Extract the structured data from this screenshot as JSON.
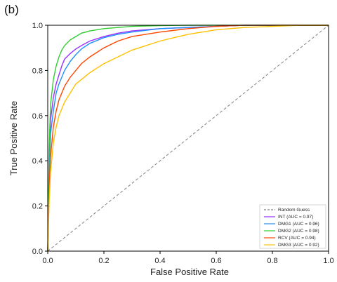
{
  "panel_label": "(b)",
  "chart_data": {
    "type": "line",
    "title": "",
    "xlabel": "False Positive Rate",
    "ylabel": "True Positive Rate",
    "xlim": [
      0.0,
      1.0
    ],
    "ylim": [
      0.0,
      1.0
    ],
    "xticks": [
      "0.0",
      "0.2",
      "0.4",
      "0.6",
      "0.8",
      "1.0"
    ],
    "yticks": [
      "0.0",
      "0.2",
      "0.4",
      "0.6",
      "0.8",
      "1.0"
    ],
    "grid": false,
    "legend_position": "lower-right",
    "series": [
      {
        "name": "Random Guess",
        "color": "#808080",
        "dashed": true,
        "x": [
          0,
          1
        ],
        "y": [
          0,
          1
        ]
      },
      {
        "name": "INT (AUC = 0.97)",
        "color": "#9b30ff",
        "x": [
          0,
          0.005,
          0.01,
          0.02,
          0.03,
          0.04,
          0.05,
          0.06,
          0.08,
          0.1,
          0.12,
          0.15,
          0.2,
          0.25,
          0.3,
          0.4,
          0.5,
          0.6,
          0.7,
          1.0
        ],
        "y": [
          0,
          0.4,
          0.58,
          0.68,
          0.74,
          0.78,
          0.82,
          0.85,
          0.875,
          0.895,
          0.91,
          0.93,
          0.95,
          0.965,
          0.975,
          0.985,
          0.99,
          0.995,
          1.0,
          1.0
        ]
      },
      {
        "name": "DMG1 (AUC = 0.96)",
        "color": "#1e90ff",
        "x": [
          0,
          0.005,
          0.01,
          0.02,
          0.03,
          0.04,
          0.05,
          0.06,
          0.08,
          0.1,
          0.12,
          0.15,
          0.2,
          0.25,
          0.3,
          0.4,
          0.5,
          0.6,
          0.7,
          1.0
        ],
        "y": [
          0,
          0.35,
          0.52,
          0.62,
          0.7,
          0.74,
          0.77,
          0.8,
          0.84,
          0.87,
          0.895,
          0.92,
          0.945,
          0.96,
          0.97,
          0.985,
          0.99,
          0.995,
          1.0,
          1.0
        ]
      },
      {
        "name": "DMG2 (AUC = 0.98)",
        "color": "#32cd32",
        "x": [
          0,
          0.005,
          0.01,
          0.02,
          0.03,
          0.04,
          0.05,
          0.06,
          0.08,
          0.1,
          0.12,
          0.15,
          0.2,
          0.25,
          0.3,
          0.4,
          0.5,
          0.6,
          1.0
        ],
        "y": [
          0,
          0.45,
          0.65,
          0.76,
          0.82,
          0.86,
          0.89,
          0.91,
          0.935,
          0.95,
          0.965,
          0.975,
          0.985,
          0.99,
          0.995,
          0.998,
          1.0,
          1.0,
          1.0
        ]
      },
      {
        "name": "RCV (AUC = 0.94)",
        "color": "#ff4500",
        "x": [
          0,
          0.005,
          0.01,
          0.02,
          0.03,
          0.04,
          0.05,
          0.06,
          0.08,
          0.1,
          0.12,
          0.15,
          0.2,
          0.25,
          0.3,
          0.4,
          0.5,
          0.6,
          0.7,
          1.0
        ],
        "y": [
          0,
          0.28,
          0.42,
          0.55,
          0.62,
          0.67,
          0.7,
          0.73,
          0.77,
          0.8,
          0.83,
          0.86,
          0.9,
          0.93,
          0.95,
          0.97,
          0.985,
          0.995,
          1.0,
          1.0
        ]
      },
      {
        "name": "DMG3 (AUC = 0.92)",
        "color": "#ffc000",
        "x": [
          0,
          0.005,
          0.01,
          0.02,
          0.03,
          0.04,
          0.05,
          0.06,
          0.08,
          0.1,
          0.12,
          0.15,
          0.2,
          0.25,
          0.3,
          0.4,
          0.5,
          0.6,
          0.7,
          0.8,
          0.9,
          1.0
        ],
        "y": [
          0,
          0.22,
          0.35,
          0.48,
          0.55,
          0.6,
          0.63,
          0.66,
          0.7,
          0.74,
          0.76,
          0.79,
          0.83,
          0.86,
          0.89,
          0.93,
          0.96,
          0.98,
          0.99,
          0.995,
          1.0,
          1.0
        ]
      }
    ]
  }
}
